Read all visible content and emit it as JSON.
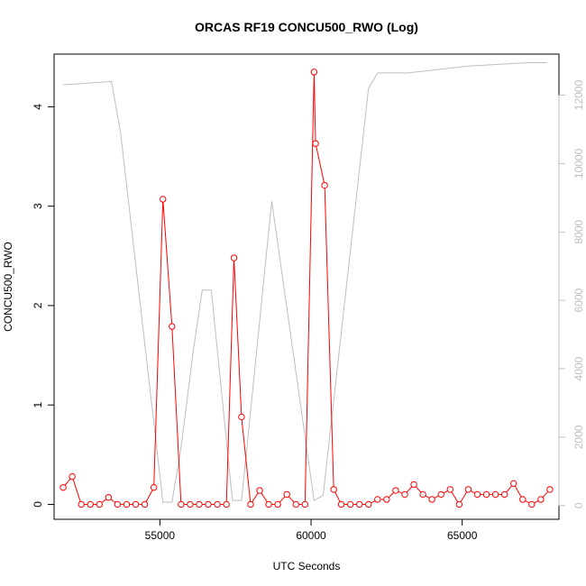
{
  "chart_data": {
    "type": "line",
    "title": "ORCAS RF19 CONCU500_RWO (Log)",
    "xlabel": "UTC Seconds",
    "ylabel": "CONCU500_RWO",
    "xlim": [
      51500,
      68200
    ],
    "ylim": [
      -0.15,
      4.53
    ],
    "y2lim": [
      -400,
      13200
    ],
    "x_ticks": [
      55000,
      60000,
      65000
    ],
    "y_ticks": [
      0,
      1,
      2,
      3,
      4
    ],
    "y2_ticks": [
      0,
      2000,
      4000,
      6000,
      8000,
      10000,
      12000
    ],
    "grid": false,
    "colors": {
      "primary": "#ff0000",
      "secondary": "#bebebe",
      "axis": "#000000",
      "secondary_axis": "#bebebe"
    },
    "series": [
      {
        "axis": "left",
        "style": "points-and-lines",
        "x": [
          51800,
          52100,
          52400,
          52700,
          53000,
          53300,
          53600,
          53900,
          54200,
          54500,
          54800,
          55100,
          55400,
          55700,
          56000,
          56300,
          56600,
          56900,
          57200,
          57450,
          57700,
          58000,
          58300,
          58600,
          58900,
          59200,
          59500,
          59800,
          60100,
          60150,
          60450,
          60750,
          61000,
          61300,
          61600,
          61900,
          62200,
          62500,
          62800,
          63100,
          63400,
          63700,
          64000,
          64300,
          64600,
          64900,
          65200,
          65500,
          65800,
          66100,
          66400,
          66700,
          67000,
          67300,
          67600,
          67900
        ],
        "y": [
          0.17,
          0.28,
          0.0,
          0.0,
          0.0,
          0.07,
          0.0,
          0.0,
          0.0,
          0.0,
          0.17,
          3.07,
          1.79,
          0.0,
          0.0,
          0.0,
          0.0,
          0.0,
          0.0,
          2.48,
          0.88,
          0.0,
          0.14,
          0.0,
          0.0,
          0.1,
          0.0,
          0.0,
          4.35,
          3.63,
          3.21,
          0.15,
          0.0,
          0.0,
          0.0,
          0.0,
          0.05,
          0.05,
          0.14,
          0.1,
          0.2,
          0.1,
          0.05,
          0.1,
          0.15,
          0.0,
          0.15,
          0.1,
          0.1,
          0.1,
          0.1,
          0.21,
          0.05,
          0.0,
          0.05,
          0.15
        ]
      },
      {
        "axis": "right",
        "style": "line",
        "x": [
          51800,
          53400,
          53700,
          55100,
          55400,
          55700,
          56100,
          56400,
          56700,
          57400,
          57700,
          58700,
          60100,
          60400,
          61900,
          62200,
          63200,
          65200,
          67200,
          67800
        ],
        "y": [
          12300,
          12400,
          10900,
          100,
          100,
          1700,
          4500,
          6300,
          6300,
          150,
          150,
          8900,
          150,
          300,
          12200,
          12650,
          12650,
          12850,
          12950,
          12950
        ]
      }
    ]
  }
}
